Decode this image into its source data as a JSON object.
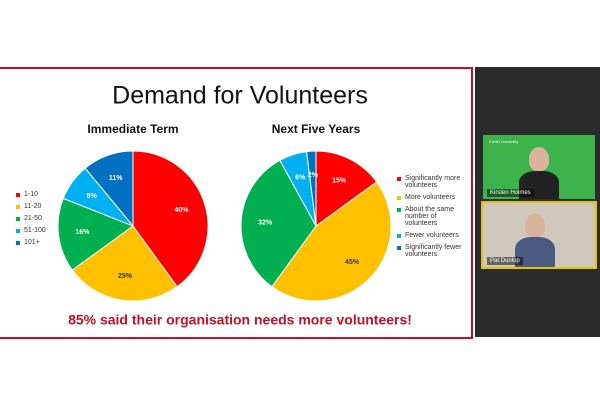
{
  "slide": {
    "title": "Demand for Volunteers",
    "footer": "85% said their organisation needs more volunteers!"
  },
  "chart_data": [
    {
      "type": "pie",
      "title": "Immediate Term",
      "categories": [
        "1-10",
        "11-20",
        "21-50",
        "51-100",
        "101+"
      ],
      "values": [
        40,
        25,
        16,
        8,
        11
      ],
      "value_labels": [
        "40%",
        "25%",
        "16%",
        "8%",
        "11%"
      ],
      "colors": [
        "#ff0000",
        "#ffc000",
        "#00b050",
        "#00b0f0",
        "#0070c0"
      ],
      "legend": "left"
    },
    {
      "type": "pie",
      "title": "Next Five Years",
      "categories": [
        "Significantly more volunteers",
        "More volunteers",
        "About the same number of volunteers",
        "Fewer volunteers",
        "Significantly fewer volunteers"
      ],
      "values": [
        15,
        45,
        32,
        6,
        2
      ],
      "value_labels": [
        "15%",
        "45%",
        "32%",
        "6%",
        "2%"
      ],
      "colors": [
        "#ff0000",
        "#ffc000",
        "#00b050",
        "#00b0f0",
        "#0070c0"
      ],
      "legend": "right"
    }
  ],
  "participants": [
    {
      "name": "Kirsten Holmes",
      "org": "Curtin University"
    },
    {
      "name": "Pat Dunlop"
    }
  ]
}
